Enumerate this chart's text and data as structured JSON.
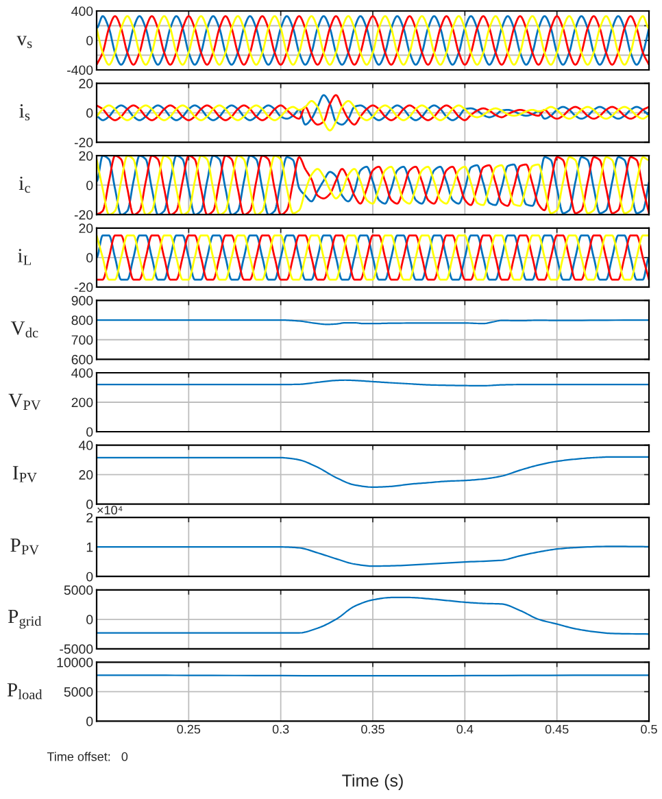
{
  "chart_data": [
    {
      "type": "line",
      "ylabel": "v$_{s}$",
      "tick_labels": "y",
      "grid": true,
      "xlim": [
        0.2,
        0.5
      ],
      "xticks": [
        0.25,
        0.3,
        0.35,
        0.4,
        0.45,
        0.5
      ],
      "ylim": [
        -400,
        400
      ],
      "yticks": [
        -400,
        {
          "value": -200,
          "label": null
        },
        0,
        {
          "value": 200,
          "label": null
        },
        400
      ],
      "x": [
        0.2,
        0.2033,
        0.2067,
        0.21,
        0.2133,
        0.2167,
        0.22,
        0.2233,
        0.2267,
        0.23,
        0.2333,
        0.2367,
        0.24,
        0.2433,
        0.2467,
        0.25,
        0.2533,
        0.2567,
        0.26,
        0.2633,
        0.2667,
        0.27,
        0.2733,
        0.2767,
        0.28,
        0.2833,
        0.2867,
        0.29,
        0.2933,
        0.2967,
        0.3,
        0.3033,
        0.3067,
        0.31,
        0.3133,
        0.3167,
        0.32,
        0.3233,
        0.3267,
        0.33,
        0.3333,
        0.3367,
        0.34,
        0.3433,
        0.3467,
        0.35,
        0.3533,
        0.3567,
        0.36,
        0.3633,
        0.3667,
        0.37,
        0.3733,
        0.3767,
        0.38,
        0.3833,
        0.3867,
        0.39,
        0.3933,
        0.3967,
        0.4,
        0.4033,
        0.4067,
        0.41,
        0.4133,
        0.4167,
        0.42,
        0.4233,
        0.4267,
        0.43,
        0.4333,
        0.4367,
        0.44,
        0.4433,
        0.4467,
        0.45,
        0.4533,
        0.4567,
        0.46,
        0.4633,
        0.4667,
        0.47,
        0.4733,
        0.4767,
        0.48,
        0.4833,
        0.4867,
        0.49,
        0.4933,
        0.4967,
        0.5
      ],
      "series": [
        {
          "color": "#0072bd",
          "values": [
            165,
            330,
            165,
            -165,
            -330,
            -165,
            165,
            330,
            165,
            -165,
            -330,
            -165,
            165,
            330,
            165,
            -165,
            -330,
            -165,
            165,
            330,
            165,
            -165,
            -330,
            -165,
            165,
            330,
            165,
            -165,
            -330,
            -165,
            165,
            330,
            165,
            -165,
            -330,
            -165,
            165,
            330,
            165,
            -165,
            -330,
            -165,
            165,
            330,
            165,
            -165,
            -330,
            -165,
            165,
            330,
            165,
            -165,
            -330,
            -165,
            165,
            330,
            165,
            -165,
            -330,
            -165,
            165,
            330,
            165,
            -165,
            -330,
            -165,
            165,
            330,
            165,
            -165,
            -330,
            -165,
            165,
            330,
            165,
            -165,
            -330,
            -165,
            165,
            330,
            165,
            -165,
            -330,
            -165,
            165,
            330,
            165,
            -165,
            -330,
            -165,
            165
          ]
        },
        {
          "color": "#ff0000",
          "values": [
            -330,
            -165,
            165,
            330,
            165,
            -165,
            -330,
            -165,
            165,
            330,
            165,
            -165,
            -330,
            -165,
            165,
            330,
            165,
            -165,
            -330,
            -165,
            165,
            330,
            165,
            -165,
            -330,
            -165,
            165,
            330,
            165,
            -165,
            -330,
            -165,
            165,
            330,
            165,
            -165,
            -330,
            -165,
            165,
            330,
            165,
            -165,
            -330,
            -165,
            165,
            330,
            165,
            -165,
            -330,
            -165,
            165,
            330,
            165,
            -165,
            -330,
            -165,
            165,
            330,
            165,
            -165,
            -330,
            -165,
            165,
            330,
            165,
            -165,
            -330,
            -165,
            165,
            330,
            165,
            -165,
            -330,
            -165,
            165,
            330,
            165,
            -165,
            -330,
            -165,
            165,
            330,
            165,
            -165,
            -330,
            -165,
            165,
            330,
            165,
            -165,
            -330
          ]
        },
        {
          "color": "#ffff00",
          "values": [
            165,
            -165,
            -330,
            -165,
            165,
            330,
            165,
            -165,
            -330,
            -165,
            165,
            330,
            165,
            -165,
            -330,
            -165,
            165,
            330,
            165,
            -165,
            -330,
            -165,
            165,
            330,
            165,
            -165,
            -330,
            -165,
            165,
            330,
            165,
            -165,
            -330,
            -165,
            165,
            330,
            165,
            -165,
            -330,
            -165,
            165,
            330,
            165,
            -165,
            -330,
            -165,
            165,
            330,
            165,
            -165,
            -330,
            -165,
            165,
            330,
            165,
            -165,
            -330,
            -165,
            165,
            330,
            165,
            -165,
            -330,
            -165,
            165,
            330,
            165,
            -165,
            -330,
            -165,
            165,
            330,
            165,
            -165,
            -330,
            -165,
            165,
            330,
            165,
            -165,
            -330,
            -165,
            165,
            330,
            165,
            -165,
            -330,
            -165,
            165,
            330,
            165
          ]
        }
      ]
    },
    {
      "type": "line",
      "ylabel": "i$_{s}$",
      "tick_labels": "y",
      "grid": true,
      "xlim": [
        0.2,
        0.5
      ],
      "xticks": [
        0.25,
        0.3,
        0.35,
        0.4,
        0.45,
        0.5
      ],
      "ylim": [
        -20,
        20
      ],
      "yticks": [
        -20,
        0,
        20
      ],
      "x": [
        0.2,
        0.2033,
        0.2067,
        0.21,
        0.2133,
        0.2167,
        0.22,
        0.2233,
        0.2267,
        0.23,
        0.2333,
        0.2367,
        0.24,
        0.2433,
        0.2467,
        0.25,
        0.2533,
        0.2567,
        0.26,
        0.2633,
        0.2667,
        0.27,
        0.2733,
        0.2767,
        0.28,
        0.2833,
        0.2867,
        0.29,
        0.2933,
        0.2967,
        0.3,
        0.3033,
        0.3067,
        0.31,
        0.3133,
        0.3167,
        0.32,
        0.3233,
        0.3267,
        0.33,
        0.3333,
        0.3367,
        0.34,
        0.3433,
        0.3467,
        0.35,
        0.3533,
        0.3567,
        0.36,
        0.3633,
        0.3667,
        0.37,
        0.3733,
        0.3767,
        0.38,
        0.3833,
        0.3867,
        0.39,
        0.3933,
        0.3967,
        0.4,
        0.4033,
        0.4067,
        0.41,
        0.4133,
        0.4167,
        0.42,
        0.4233,
        0.4267,
        0.43,
        0.4333,
        0.4367,
        0.44,
        0.4433,
        0.4467,
        0.45,
        0.4533,
        0.4567,
        0.46,
        0.4633,
        0.4667,
        0.47,
        0.4733,
        0.4767,
        0.48,
        0.4833,
        0.4867,
        0.49,
        0.4933,
        0.4967,
        0.5
      ],
      "series": [
        {
          "color": "#0072bd",
          "values": [
            -2.5,
            -5,
            -2.5,
            2.5,
            5,
            2.5,
            -2.5,
            -5,
            -2.5,
            2.5,
            5,
            2.5,
            -2.5,
            -5,
            -2.5,
            2.5,
            5,
            2.5,
            -2.5,
            -5,
            -2.5,
            2.5,
            5,
            2.5,
            -2.5,
            -5,
            -2.5,
            2.5,
            5,
            2.5,
            -2.5,
            -4,
            -2,
            2,
            -8,
            -4,
            4,
            12,
            6,
            -6,
            -8,
            -4,
            4,
            5,
            2.5,
            -2.5,
            -5,
            -2.5,
            2.5,
            5,
            2.5,
            -2.5,
            -5,
            -2.5,
            2.5,
            5,
            2.5,
            -2.5,
            -5,
            -2.5,
            2.5,
            3,
            1.5,
            -1.5,
            -3,
            -1.5,
            1.5,
            2,
            1,
            -1,
            -2,
            -1,
            1,
            -4,
            -2,
            2,
            4,
            2,
            -2,
            -4,
            -2,
            2,
            4,
            2,
            -2,
            -4,
            -2,
            2,
            4,
            2,
            -2
          ]
        },
        {
          "color": "#ff0000",
          "values": [
            5,
            2.5,
            -2.5,
            -5,
            -2.5,
            2.5,
            5,
            2.5,
            -2.5,
            -5,
            -2.5,
            2.5,
            5,
            2.5,
            -2.5,
            -5,
            -2.5,
            2.5,
            5,
            2.5,
            -2.5,
            -5,
            -2.5,
            2.5,
            5,
            2.5,
            -2.5,
            -5,
            -2.5,
            2.5,
            5,
            2,
            -2,
            -4,
            4,
            -4,
            -8,
            -6,
            6,
            12,
            4,
            -4,
            -8,
            -2.5,
            2.5,
            5,
            2.5,
            -2.5,
            -5,
            -2.5,
            2.5,
            5,
            2.5,
            -2.5,
            -5,
            -2.5,
            2.5,
            5,
            2.5,
            -2.5,
            -5,
            -1.5,
            1.5,
            3,
            1.5,
            -1.5,
            -3,
            -1,
            1,
            2,
            1,
            -1,
            -2,
            2,
            -2,
            -4,
            -2,
            2,
            4,
            2,
            -2,
            -4,
            -2,
            2,
            4,
            2,
            -2,
            -4,
            -2,
            2,
            4
          ]
        },
        {
          "color": "#ffff00",
          "values": [
            -2.5,
            2.5,
            5,
            2.5,
            -2.5,
            -5,
            -2.5,
            2.5,
            5,
            2.5,
            -2.5,
            -5,
            -2.5,
            2.5,
            5,
            2.5,
            -2.5,
            -5,
            -2.5,
            2.5,
            5,
            2.5,
            -2.5,
            -5,
            -2.5,
            2.5,
            5,
            2.5,
            -2.5,
            -5,
            -2.5,
            2,
            4,
            2,
            4,
            8,
            4,
            -6,
            -12,
            -6,
            4,
            8,
            4,
            -2.5,
            -5,
            -2.5,
            2.5,
            5,
            2.5,
            -2.5,
            -5,
            -2.5,
            2.5,
            5,
            2.5,
            -2.5,
            -5,
            -2.5,
            2.5,
            5,
            2.5,
            -1.5,
            -3,
            -1.5,
            1.5,
            3,
            1.5,
            -1,
            -2,
            -1,
            1,
            2,
            1,
            2,
            4,
            2,
            -2,
            -4,
            -2,
            2,
            4,
            2,
            -2,
            -4,
            -2,
            2,
            4,
            2,
            -2,
            -4,
            -2
          ]
        }
      ]
    },
    {
      "type": "line",
      "ylabel": "i$_{c}$",
      "tick_labels": "y",
      "grid": true,
      "xlim": [
        0.2,
        0.5
      ],
      "xticks": [
        0.25,
        0.3,
        0.35,
        0.4,
        0.45,
        0.5
      ],
      "ylim": [
        -20,
        20
      ],
      "yticks": [
        -20,
        0,
        20
      ],
      "x": [
        0.2,
        0.2033,
        0.2067,
        0.21,
        0.2133,
        0.2167,
        0.22,
        0.2233,
        0.2267,
        0.23,
        0.2333,
        0.2367,
        0.24,
        0.2433,
        0.2467,
        0.25,
        0.2533,
        0.2567,
        0.26,
        0.2633,
        0.2667,
        0.27,
        0.2733,
        0.2767,
        0.28,
        0.2833,
        0.2867,
        0.29,
        0.2933,
        0.2967,
        0.3,
        0.3033,
        0.3067,
        0.31,
        0.3133,
        0.3167,
        0.32,
        0.3233,
        0.3267,
        0.33,
        0.3333,
        0.3367,
        0.34,
        0.3433,
        0.3467,
        0.35,
        0.3533,
        0.3567,
        0.36,
        0.3633,
        0.3667,
        0.37,
        0.3733,
        0.3767,
        0.38,
        0.3833,
        0.3867,
        0.39,
        0.3933,
        0.3967,
        0.4,
        0.4033,
        0.4067,
        0.41,
        0.4133,
        0.4167,
        0.42,
        0.4233,
        0.4267,
        0.43,
        0.4333,
        0.4367,
        0.44,
        0.4433,
        0.4467,
        0.45,
        0.4533,
        0.4567,
        0.46,
        0.4633,
        0.4667,
        0.47,
        0.4733,
        0.4767,
        0.48,
        0.4833,
        0.4867,
        0.49,
        0.4933,
        0.4967,
        0.5
      ],
      "series": [
        {
          "color": "#0072bd",
          "values": [
            2.5,
            20,
            17.5,
            -2.5,
            -20,
            -17.5,
            2.5,
            20,
            17.5,
            -2.5,
            -20,
            -17.5,
            2.5,
            20,
            17.5,
            -2.5,
            -20,
            -17.5,
            2.5,
            20,
            17.5,
            -2.5,
            -20,
            -17.5,
            2.5,
            20,
            17.5,
            -2.5,
            -20,
            -17.5,
            2.5,
            19,
            17,
            -2,
            -7,
            -11,
            -4,
            3,
            9,
            6,
            -7,
            -11,
            -4,
            10,
            12.5,
            2.5,
            -10,
            -12.5,
            -2.5,
            10,
            12.5,
            2.5,
            -10,
            -12.5,
            -2.5,
            10,
            12.5,
            2.5,
            -10,
            -12.5,
            -2.5,
            12,
            13.5,
            1.5,
            -12,
            -13.5,
            -1.5,
            13,
            14,
            1,
            -13,
            -14,
            -1,
            19,
            17,
            -2,
            -19,
            -17,
            2,
            19,
            17,
            -2,
            -19,
            -17,
            2,
            19,
            17,
            -2,
            -19,
            -17,
            2
          ]
        },
        {
          "color": "#ff0000",
          "values": [
            -20,
            -17.5,
            2.5,
            20,
            17.5,
            -2.5,
            -20,
            -17.5,
            2.5,
            20,
            17.5,
            -2.5,
            -20,
            -17.5,
            2.5,
            20,
            17.5,
            -2.5,
            -20,
            -17.5,
            2.5,
            20,
            17.5,
            -2.5,
            -20,
            -17.5,
            2.5,
            20,
            17.5,
            -2.5,
            -20,
            -17,
            2,
            19,
            11,
            4,
            -7,
            -9,
            -6,
            3,
            11,
            4,
            -7,
            -12.5,
            -2.5,
            10,
            12.5,
            2.5,
            -10,
            -12.5,
            -2.5,
            10,
            12.5,
            2.5,
            -10,
            -12.5,
            -2.5,
            10,
            12.5,
            2.5,
            -10,
            -13.5,
            -1.5,
            12,
            13.5,
            1.5,
            -12,
            -14,
            -1,
            13,
            14,
            1,
            -13,
            -17,
            2,
            19,
            17,
            -2,
            -19,
            -17,
            2,
            19,
            17,
            -2,
            -19,
            -17,
            2,
            19,
            17,
            -2,
            -19
          ]
        },
        {
          "color": "#ffff00",
          "values": [
            17.5,
            -2.5,
            -20,
            -17.5,
            2.5,
            20,
            17.5,
            -2.5,
            -20,
            -17.5,
            2.5,
            20,
            17.5,
            -2.5,
            -20,
            -17.5,
            2.5,
            20,
            17.5,
            -2.5,
            -20,
            -17.5,
            2.5,
            20,
            17.5,
            -2.5,
            -20,
            -17.5,
            2.5,
            20,
            17.5,
            -2,
            -19,
            -17,
            -4,
            7,
            11,
            6,
            -3,
            -9,
            -4,
            7,
            11,
            2.5,
            -10,
            -12.5,
            -2.5,
            10,
            12.5,
            2.5,
            -10,
            -12.5,
            -2.5,
            10,
            12.5,
            2.5,
            -10,
            -12.5,
            -2.5,
            10,
            12.5,
            1.5,
            -12,
            -13.5,
            -1.5,
            12,
            13.5,
            1,
            -13,
            -14,
            -1,
            13,
            14,
            -2,
            -19,
            -17,
            2,
            19,
            17,
            -2,
            -19,
            -17,
            2,
            19,
            17,
            -2,
            -19,
            -17,
            2,
            19,
            17
          ]
        }
      ]
    },
    {
      "type": "line",
      "ylabel": "i$_{L}$",
      "tick_labels": "y",
      "grid": true,
      "xlim": [
        0.2,
        0.5
      ],
      "xticks": [
        0.25,
        0.3,
        0.35,
        0.4,
        0.45,
        0.5
      ],
      "ylim": [
        -20,
        20
      ],
      "yticks": [
        -20,
        0,
        20
      ],
      "x": [
        0.2,
        0.2033,
        0.2067,
        0.21,
        0.2133,
        0.2167,
        0.22,
        0.2233,
        0.2267,
        0.23,
        0.2333,
        0.2367,
        0.24,
        0.2433,
        0.2467,
        0.25,
        0.2533,
        0.2567,
        0.26,
        0.2633,
        0.2667,
        0.27,
        0.2733,
        0.2767,
        0.28,
        0.2833,
        0.2867,
        0.29,
        0.2933,
        0.2967,
        0.3,
        0.3033,
        0.3067,
        0.31,
        0.3133,
        0.3167,
        0.32,
        0.3233,
        0.3267,
        0.33,
        0.3333,
        0.3367,
        0.34,
        0.3433,
        0.3467,
        0.35,
        0.3533,
        0.3567,
        0.36,
        0.3633,
        0.3667,
        0.37,
        0.3733,
        0.3767,
        0.38,
        0.3833,
        0.3867,
        0.39,
        0.3933,
        0.3967,
        0.4,
        0.4033,
        0.4067,
        0.41,
        0.4133,
        0.4167,
        0.42,
        0.4233,
        0.4267,
        0.43,
        0.4333,
        0.4367,
        0.44,
        0.4433,
        0.4467,
        0.45,
        0.4533,
        0.4567,
        0.46,
        0.4633,
        0.4667,
        0.47,
        0.4733,
        0.4767,
        0.48,
        0.4833,
        0.4867,
        0.49,
        0.4933,
        0.4967,
        0.5
      ],
      "series": [
        {
          "color": "#0072bd",
          "values": [
            0,
            15,
            15,
            0,
            -15,
            -15,
            0,
            15,
            15,
            0,
            -15,
            -15,
            0,
            15,
            15,
            0,
            -15,
            -15,
            0,
            15,
            15,
            0,
            -15,
            -15,
            0,
            15,
            15,
            0,
            -15,
            -15,
            0,
            15,
            15,
            0,
            -15,
            -15,
            0,
            15,
            15,
            0,
            -15,
            -15,
            0,
            15,
            15,
            0,
            -15,
            -15,
            0,
            15,
            15,
            0,
            -15,
            -15,
            0,
            15,
            15,
            0,
            -15,
            -15,
            0,
            15,
            15,
            0,
            -15,
            -15,
            0,
            15,
            15,
            0,
            -15,
            -15,
            0,
            15,
            15,
            0,
            -15,
            -15,
            0,
            15,
            15,
            0,
            -15,
            -15,
            0,
            15,
            15,
            0,
            -15,
            -15,
            0
          ]
        },
        {
          "color": "#ff0000",
          "values": [
            -15,
            -15,
            0,
            15,
            15,
            0,
            -15,
            -15,
            0,
            15,
            15,
            0,
            -15,
            -15,
            0,
            15,
            15,
            0,
            -15,
            -15,
            0,
            15,
            15,
            0,
            -15,
            -15,
            0,
            15,
            15,
            0,
            -15,
            -15,
            0,
            15,
            15,
            0,
            -15,
            -15,
            0,
            15,
            15,
            0,
            -15,
            -15,
            0,
            15,
            15,
            0,
            -15,
            -15,
            0,
            15,
            15,
            0,
            -15,
            -15,
            0,
            15,
            15,
            0,
            -15,
            -15,
            0,
            15,
            15,
            0,
            -15,
            -15,
            0,
            15,
            15,
            0,
            -15,
            -15,
            0,
            15,
            15,
            0,
            -15,
            -15,
            0,
            15,
            15,
            0,
            -15,
            -15,
            0,
            15,
            15,
            0,
            -15
          ]
        },
        {
          "color": "#ffff00",
          "values": [
            15,
            0,
            -15,
            -15,
            0,
            15,
            15,
            0,
            -15,
            -15,
            0,
            15,
            15,
            0,
            -15,
            -15,
            0,
            15,
            15,
            0,
            -15,
            -15,
            0,
            15,
            15,
            0,
            -15,
            -15,
            0,
            15,
            15,
            0,
            -15,
            -15,
            0,
            15,
            15,
            0,
            -15,
            -15,
            0,
            15,
            15,
            0,
            -15,
            -15,
            0,
            15,
            15,
            0,
            -15,
            -15,
            0,
            15,
            15,
            0,
            -15,
            -15,
            0,
            15,
            15,
            0,
            -15,
            -15,
            0,
            15,
            15,
            0,
            -15,
            -15,
            0,
            15,
            15,
            0,
            -15,
            -15,
            0,
            15,
            15,
            0,
            -15,
            -15,
            0,
            15,
            15,
            0,
            -15,
            -15,
            0,
            15,
            15
          ]
        }
      ]
    },
    {
      "type": "line",
      "ylabel": "V$_{dc}$",
      "tick_labels": "y",
      "grid": true,
      "xlim": [
        0.2,
        0.5
      ],
      "xticks": [
        0.25,
        0.3,
        0.35,
        0.4,
        0.45,
        0.5
      ],
      "ylim": [
        600,
        900
      ],
      "yticks": [
        600,
        700,
        800,
        900
      ],
      "x": [
        0.2,
        0.3,
        0.31,
        0.32,
        0.325,
        0.33,
        0.335,
        0.34,
        0.345,
        0.35,
        0.36,
        0.38,
        0.4,
        0.41,
        0.415,
        0.42,
        0.43,
        0.44,
        0.45,
        0.5
      ],
      "series": [
        {
          "color": "#0072bd",
          "values": [
            800,
            800,
            795,
            782,
            778,
            780,
            786,
            786,
            782,
            782,
            784,
            785,
            785,
            782,
            790,
            798,
            797,
            799,
            798,
            800
          ]
        }
      ]
    },
    {
      "type": "line",
      "ylabel": "V$_{PV}$",
      "tick_labels": "y",
      "grid": true,
      "xlim": [
        0.2,
        0.5
      ],
      "xticks": [
        0.25,
        0.3,
        0.35,
        0.4,
        0.45,
        0.5
      ],
      "ylim": [
        0,
        400
      ],
      "yticks": [
        0,
        200,
        400
      ],
      "x": [
        0.2,
        0.3,
        0.31,
        0.32,
        0.33,
        0.335,
        0.34,
        0.35,
        0.36,
        0.37,
        0.38,
        0.39,
        0.4,
        0.41,
        0.42,
        0.43,
        0.45,
        0.5
      ],
      "series": [
        {
          "color": "#0072bd",
          "values": [
            320,
            320,
            322,
            335,
            348,
            350,
            348,
            340,
            332,
            325,
            318,
            315,
            313,
            312,
            318,
            320,
            320,
            320
          ]
        }
      ]
    },
    {
      "type": "line",
      "ylabel": "I$_{PV}$",
      "tick_labels": "y",
      "grid": true,
      "xlim": [
        0.2,
        0.5
      ],
      "xticks": [
        0.25,
        0.3,
        0.35,
        0.4,
        0.45,
        0.5
      ],
      "ylim": [
        0,
        40
      ],
      "yticks": [
        0,
        20,
        40
      ],
      "x": [
        0.2,
        0.3,
        0.305,
        0.31,
        0.32,
        0.33,
        0.34,
        0.35,
        0.36,
        0.37,
        0.38,
        0.39,
        0.4,
        0.41,
        0.42,
        0.43,
        0.44,
        0.45,
        0.46,
        0.47,
        0.48,
        0.5
      ],
      "series": [
        {
          "color": "#0072bd",
          "values": [
            31.5,
            31.5,
            31,
            30,
            25,
            18,
            13,
            11.5,
            12,
            13.5,
            14.5,
            15.5,
            16,
            17,
            19,
            23,
            26.5,
            29,
            30.5,
            31.5,
            32,
            32
          ]
        }
      ]
    },
    {
      "type": "line",
      "ylabel": "P$_{PV}$",
      "tick_labels": "y",
      "grid": true,
      "annotations": [
        "×10⁴"
      ],
      "xlim": [
        0.2,
        0.5
      ],
      "xticks": [
        0.25,
        0.3,
        0.35,
        0.4,
        0.45,
        0.5
      ],
      "ylim": [
        0,
        2
      ],
      "yticks": [
        0,
        1,
        2
      ],
      "x": [
        0.2,
        0.3,
        0.31,
        0.32,
        0.33,
        0.34,
        0.35,
        0.36,
        0.38,
        0.4,
        0.42,
        0.43,
        0.44,
        0.45,
        0.46,
        0.48,
        0.5
      ],
      "series": [
        {
          "color": "#0072bd",
          "values": [
            1,
            1,
            0.97,
            0.8,
            0.6,
            0.42,
            0.35,
            0.36,
            0.42,
            0.49,
            0.55,
            0.7,
            0.83,
            0.93,
            0.98,
            1.02,
            1.01
          ]
        }
      ]
    },
    {
      "type": "line",
      "ylabel": "P$_{grid}$",
      "tick_labels": "y",
      "grid": true,
      "xlim": [
        0.2,
        0.5
      ],
      "xticks": [
        0.25,
        0.3,
        0.35,
        0.4,
        0.45,
        0.5
      ],
      "ylim": [
        -5000,
        5000
      ],
      "yticks": [
        -5000,
        0,
        5000
      ],
      "x": [
        0.2,
        0.31,
        0.32,
        0.33,
        0.34,
        0.35,
        0.36,
        0.37,
        0.38,
        0.39,
        0.4,
        0.41,
        0.42,
        0.43,
        0.44,
        0.45,
        0.46,
        0.47,
        0.48,
        0.5
      ],
      "series": [
        {
          "color": "#0072bd",
          "values": [
            -2300,
            -2300,
            -1500,
            0,
            2200,
            3300,
            3700,
            3700,
            3500,
            3200,
            2900,
            2700,
            2600,
            1500,
            0,
            -800,
            -1600,
            -2100,
            -2400,
            -2500
          ]
        }
      ]
    },
    {
      "type": "line",
      "ylabel": "P$_{load}$",
      "xlabel": "Time (s)",
      "grid": true,
      "annotations": [
        "Time offset:   0"
      ],
      "xlim": [
        0.2,
        0.5
      ],
      "xticks": [
        0.25,
        0.3,
        0.35,
        0.4,
        0.45,
        0.5
      ],
      "ylim": [
        0,
        10000
      ],
      "yticks": [
        0,
        5000,
        10000
      ],
      "x": [
        0.2,
        0.35,
        0.5
      ],
      "series": [
        {
          "color": "#0072bd",
          "values": [
            7800,
            7700,
            7800
          ]
        }
      ]
    }
  ]
}
